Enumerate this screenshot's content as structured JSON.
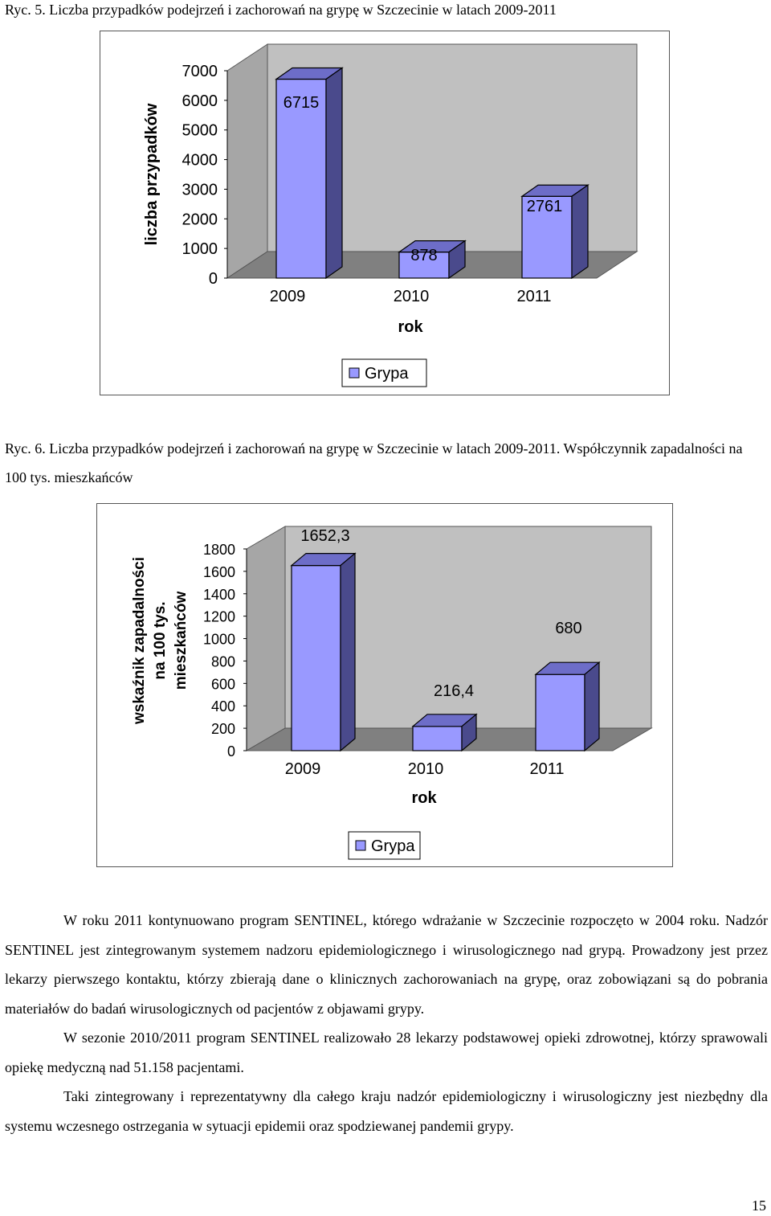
{
  "captions": {
    "fig5": "Ryc. 5. Liczba przypadków podejrzeń i zachorowań na grypę w Szczecinie w latach 2009-2011",
    "fig6": "Ryc. 6. Liczba przypadków podejrzeń i zachorowań na grypę w Szczecinie w latach 2009-2011. Współczynnik zapadalności na 100 tys. mieszkańców"
  },
  "chart_data": [
    {
      "type": "bar",
      "title": "",
      "categories": [
        "2009",
        "2010",
        "2011"
      ],
      "series": [
        {
          "name": "Grypa",
          "values": [
            6715,
            878,
            2761
          ]
        }
      ],
      "data_labels": [
        "6715",
        "878",
        "2761"
      ],
      "xlabel": "rok",
      "ylabel": "liczba przypadków",
      "ylim": [
        0,
        7000
      ],
      "yticks": [
        "0",
        "1000",
        "2000",
        "3000",
        "4000",
        "5000",
        "6000",
        "7000"
      ],
      "grid": false,
      "legend": "bottom",
      "bar_color": "#9999ff"
    },
    {
      "type": "bar",
      "title": "",
      "categories": [
        "2009",
        "2010",
        "2011"
      ],
      "series": [
        {
          "name": "Grypa",
          "values": [
            1652.3,
            216.4,
            680
          ]
        }
      ],
      "data_labels": [
        "1652,3",
        "216,4",
        "680"
      ],
      "xlabel": "rok",
      "ylabel_lines": [
        "wskaźnik zapadalności",
        "na 100 tys.",
        "mieszkańców"
      ],
      "ylim": [
        0,
        1800
      ],
      "yticks": [
        "0",
        "200",
        "400",
        "600",
        "800",
        "1000",
        "1200",
        "1400",
        "1600",
        "1800"
      ],
      "grid": false,
      "legend": "bottom",
      "bar_color": "#9999ff"
    }
  ],
  "body": {
    "p1": "W roku 2011 kontynuowano program SENTINEL, którego wdrażanie w Szczecinie rozpoczęto w 2004 roku. Nadzór SENTINEL jest zintegrowanym systemem nadzoru epidemiologicznego i wirusologicznego nad grypą. Prowadzony jest przez lekarzy pierwszego kontaktu, którzy zbierają dane o klinicznych zachorowaniach na grypę, oraz zobowiązani są do pobrania materiałów do badań wirusologicznych od pacjentów z objawami grypy.",
    "p2": "W sezonie 2010/2011 program SENTINEL realizowało 28 lekarzy podstawowej opieki zdrowotnej, którzy sprawowali opiekę medyczną nad 51.158 pacjentami.",
    "p3": "Taki zintegrowany i reprezentatywny dla całego kraju nadzór epidemiologiczny i wirusologiczny jest niezbędny dla systemu wczesnego ostrzegania w sytuacji epidemii oraz spodziewanej pandemii grypy."
  },
  "page_number": "15"
}
